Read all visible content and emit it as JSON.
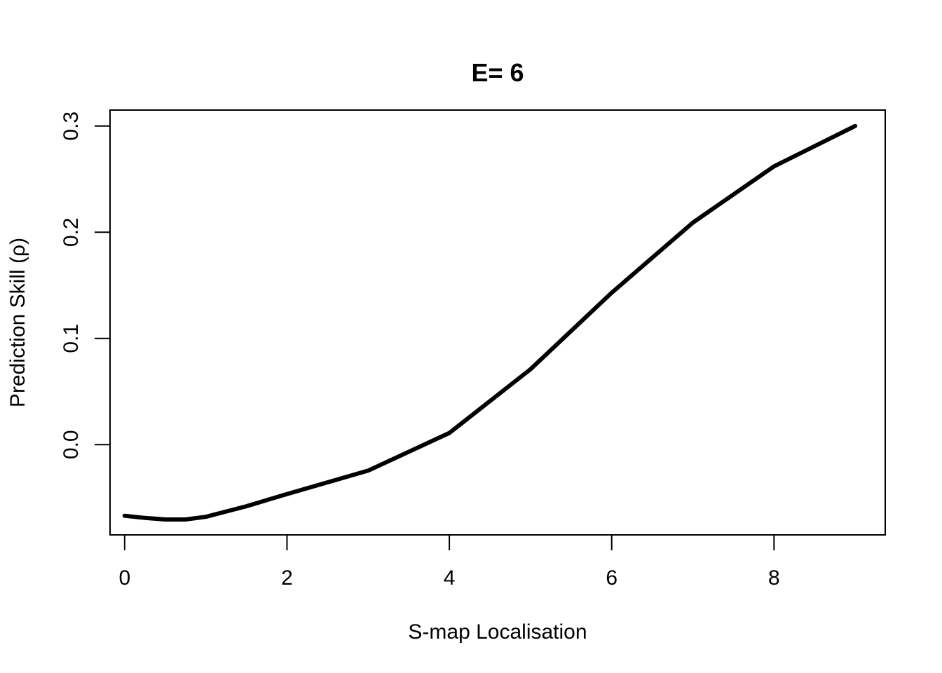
{
  "chart_data": {
    "type": "line",
    "title": "E= 6",
    "xlabel": "S-map Localisation",
    "ylabel": "Prediction Skill (ρ)",
    "xlim": [
      -0.18,
      9.37
    ],
    "ylim": [
      -0.085,
      0.315
    ],
    "x_ticks": [
      0,
      2,
      4,
      6,
      8
    ],
    "x_tick_labels": [
      "0",
      "2",
      "4",
      "6",
      "8"
    ],
    "y_ticks": [
      0.0,
      0.1,
      0.2,
      0.3
    ],
    "y_tick_labels": [
      "0.0",
      "0.1",
      "0.2",
      "0.3"
    ],
    "grid": false,
    "line_color": "#000000",
    "series": [
      {
        "x": [
          0,
          0.25,
          0.5,
          0.75,
          1,
          1.5,
          2,
          3,
          4,
          5,
          6,
          7,
          8,
          9
        ],
        "values": [
          -0.067,
          -0.069,
          -0.0705,
          -0.0705,
          -0.068,
          -0.058,
          -0.0465,
          -0.0245,
          0.011,
          0.071,
          0.143,
          0.209,
          0.262,
          0.3
        ]
      }
    ]
  }
}
